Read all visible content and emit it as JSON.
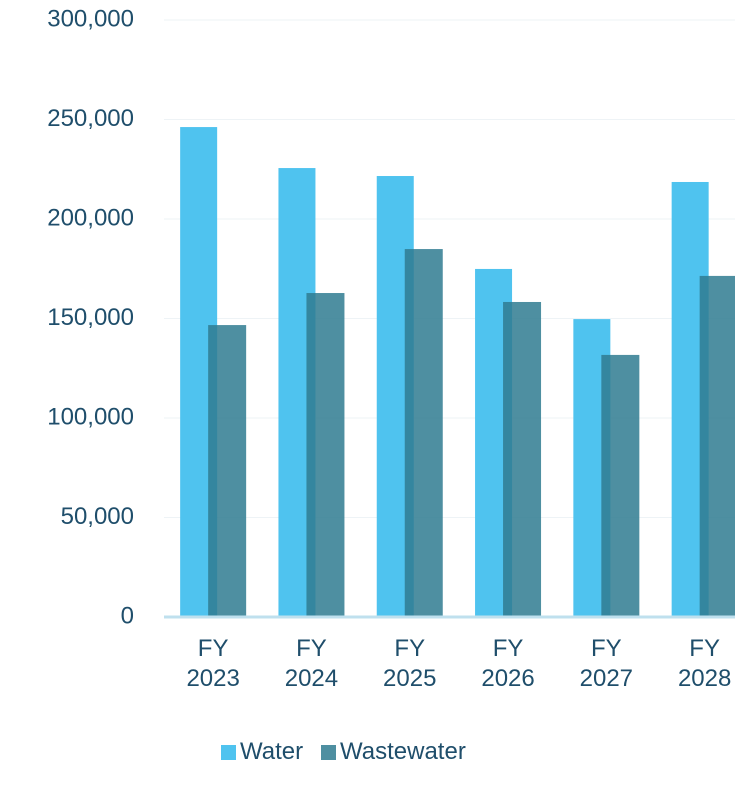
{
  "chart_data": {
    "type": "bar",
    "categories": [
      "FY 2023",
      "FY 2024",
      "FY 2025",
      "FY 2026",
      "FY 2027",
      "FY 2028"
    ],
    "series": [
      {
        "name": "Water",
        "color": "#4fc3ef",
        "values": [
          246200,
          225600,
          221600,
          174900,
          149700,
          218600
        ]
      },
      {
        "name": "Wastewater",
        "color": "#2f7b90",
        "values": [
          146700,
          162800,
          184900,
          158300,
          131700,
          171400
        ]
      }
    ],
    "ylim": [
      0,
      300000
    ],
    "yticks": [
      {
        "value": 0,
        "label": "0"
      },
      {
        "value": 50000,
        "label": "50,000"
      },
      {
        "value": 100000,
        "label": "100,000"
      },
      {
        "value": 150000,
        "label": "150,000"
      },
      {
        "value": 200000,
        "label": "200,000"
      },
      {
        "value": 250000,
        "label": "250,000"
      },
      {
        "value": 300000,
        "label": "300,000"
      }
    ],
    "grid": true,
    "legend": "bottom"
  }
}
